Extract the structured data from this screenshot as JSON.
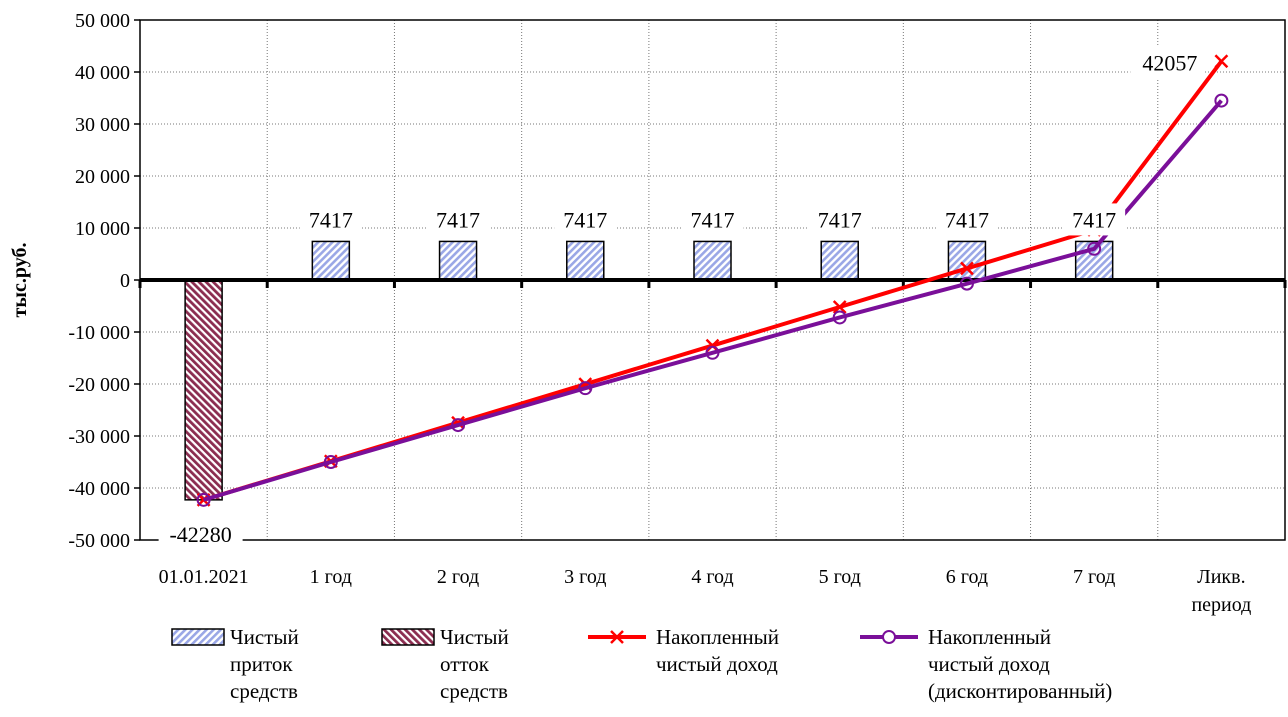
{
  "chart_data": {
    "type": "bar",
    "title": "",
    "xlabel": "",
    "ylabel": "тыс.руб.",
    "ylim": [
      -50000,
      50000
    ],
    "y_ticks": [
      50000,
      40000,
      30000,
      20000,
      10000,
      0,
      -10000,
      -20000,
      -30000,
      -40000,
      -50000
    ],
    "y_tick_labels": [
      "50 000",
      "40 000",
      "30 000",
      "20 000",
      "10 000",
      "0",
      "-10 000",
      "-20 000",
      "-30 000",
      "-40 000",
      "-50 000"
    ],
    "categories": [
      "01.01.2021",
      "1 год",
      "2 год",
      "3 год",
      "4 год",
      "5 год",
      "6 год",
      "7 год",
      "Ликв. период"
    ],
    "category_labels": [
      [
        "01.01.2021"
      ],
      [
        "1 год"
      ],
      [
        "2 год"
      ],
      [
        "3 год"
      ],
      [
        "4 год"
      ],
      [
        "5 год"
      ],
      [
        "6 год"
      ],
      [
        "7 год"
      ],
      [
        "Ликв.",
        "период"
      ]
    ],
    "grid": true,
    "legend_position": "bottom",
    "series": [
      {
        "name": "Чистый приток средств",
        "legend_lines": [
          "Чистый",
          "приток",
          "средств"
        ],
        "kind": "bar",
        "color": "#9aa7e6",
        "values": [
          null,
          7417,
          7417,
          7417,
          7417,
          7417,
          7417,
          7417,
          null
        ],
        "labels": [
          "",
          "7417",
          "7417",
          "7417",
          "7417",
          "7417",
          "7417",
          "7417",
          ""
        ]
      },
      {
        "name": "Чистый отток средств",
        "legend_lines": [
          "Чистый",
          "отток",
          "средств"
        ],
        "kind": "bar",
        "color": "#8b2d50",
        "values": [
          -42280,
          null,
          null,
          null,
          null,
          null,
          null,
          null,
          null
        ],
        "labels": [
          "-42280",
          "",
          "",
          "",
          "",
          "",
          "",
          "",
          ""
        ]
      },
      {
        "name": "Накопленный чистый доход",
        "legend_lines": [
          "Накопленный",
          "чистый доход"
        ],
        "kind": "line",
        "marker": "x",
        "color": "#ff0000",
        "values": [
          -42280,
          -34863,
          -27446,
          -20029,
          -12612,
          -5195,
          2222,
          9639,
          42057
        ],
        "labels": [
          "",
          "",
          "",
          "",
          "",
          "",
          "",
          "",
          "42057"
        ]
      },
      {
        "name": "Накопленный чистый доход (дисконтированный)",
        "legend_lines": [
          "Накопленный",
          "чистый доход",
          "(дисконтированный)"
        ],
        "kind": "line",
        "marker": "o",
        "color": "#7a0f99",
        "values": [
          -42280,
          -35000,
          -27900,
          -20800,
          -14000,
          -7200,
          -700,
          6000,
          34500
        ],
        "labels": [
          "",
          "",
          "",
          "",
          "",
          "",
          "",
          "",
          ""
        ]
      }
    ]
  }
}
